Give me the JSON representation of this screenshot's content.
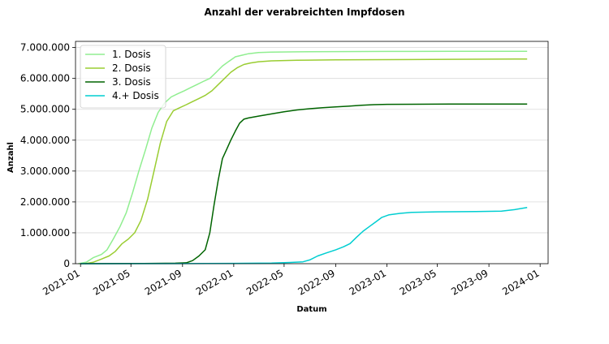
{
  "chart_data": {
    "type": "line",
    "title": "Anzahl der verabreichten Impfdosen",
    "xlabel": "Datum",
    "ylabel": "Anzahl",
    "xlim": [
      "2020-12-20",
      "2024-01-20"
    ],
    "ylim": [
      0,
      7200000
    ],
    "grid": "horizontal",
    "legend_position": "top-left",
    "x_ticks": [
      {
        "date": "2021-01-01",
        "label": "2021-01"
      },
      {
        "date": "2021-05-01",
        "label": "2021-05"
      },
      {
        "date": "2021-09-01",
        "label": "2021-09"
      },
      {
        "date": "2022-01-01",
        "label": "2022-01"
      },
      {
        "date": "2022-05-01",
        "label": "2022-05"
      },
      {
        "date": "2022-09-01",
        "label": "2022-09"
      },
      {
        "date": "2023-01-01",
        "label": "2023-01"
      },
      {
        "date": "2023-05-01",
        "label": "2023-05"
      },
      {
        "date": "2023-09-01",
        "label": "2023-09"
      },
      {
        "date": "2024-01-01",
        "label": "2024-01"
      }
    ],
    "y_ticks": [
      {
        "value": 0,
        "label": "0"
      },
      {
        "value": 1000000,
        "label": "1.000.000"
      },
      {
        "value": 2000000,
        "label": "2.000.000"
      },
      {
        "value": 3000000,
        "label": "3.000.000"
      },
      {
        "value": 4000000,
        "label": "4.000.000"
      },
      {
        "value": 5000000,
        "label": "5.000.000"
      },
      {
        "value": 6000000,
        "label": "6.000.000"
      },
      {
        "value": 7000000,
        "label": "7.000.000"
      }
    ],
    "series": [
      {
        "name": "1. Dosis",
        "color": "#90ee90",
        "x": [
          "2020-12-27",
          "2021-01-15",
          "2021-02-01",
          "2021-02-20",
          "2021-03-05",
          "2021-03-20",
          "2021-04-05",
          "2021-04-20",
          "2021-05-05",
          "2021-05-20",
          "2021-06-05",
          "2021-06-20",
          "2021-07-05",
          "2021-07-20",
          "2021-08-05",
          "2021-08-20",
          "2021-09-05",
          "2021-09-20",
          "2021-10-05",
          "2021-10-20",
          "2021-11-05",
          "2021-11-20",
          "2021-12-05",
          "2021-12-20",
          "2022-01-05",
          "2022-01-20",
          "2022-02-05",
          "2022-03-01",
          "2022-04-01",
          "2022-06-01",
          "2022-09-01",
          "2023-01-01",
          "2023-06-01",
          "2023-12-01"
        ],
        "values": [
          0,
          50000,
          200000,
          300000,
          450000,
          800000,
          1200000,
          1650000,
          2300000,
          3000000,
          3700000,
          4400000,
          4900000,
          5200000,
          5400000,
          5500000,
          5600000,
          5700000,
          5800000,
          5900000,
          6000000,
          6200000,
          6400000,
          6550000,
          6700000,
          6750000,
          6800000,
          6840000,
          6850000,
          6860000,
          6870000,
          6875000,
          6880000,
          6880000
        ]
      },
      {
        "name": "2. Dosis",
        "color": "#9acd32",
        "x": [
          "2021-01-12",
          "2021-02-01",
          "2021-02-20",
          "2021-03-10",
          "2021-03-25",
          "2021-04-10",
          "2021-04-25",
          "2021-05-10",
          "2021-05-25",
          "2021-06-10",
          "2021-06-25",
          "2021-07-10",
          "2021-07-25",
          "2021-08-10",
          "2021-08-25",
          "2021-09-10",
          "2021-09-25",
          "2021-10-10",
          "2021-10-25",
          "2021-11-10",
          "2021-11-25",
          "2021-12-10",
          "2021-12-25",
          "2022-01-10",
          "2022-01-25",
          "2022-02-10",
          "2022-03-01",
          "2022-04-01",
          "2022-06-01",
          "2022-09-01",
          "2023-01-01",
          "2023-06-01",
          "2023-12-01"
        ],
        "values": [
          0,
          50000,
          150000,
          250000,
          400000,
          650000,
          800000,
          1000000,
          1400000,
          2100000,
          3000000,
          3900000,
          4600000,
          4950000,
          5050000,
          5150000,
          5250000,
          5350000,
          5450000,
          5600000,
          5800000,
          6000000,
          6200000,
          6350000,
          6450000,
          6500000,
          6540000,
          6570000,
          6590000,
          6600000,
          6610000,
          6620000,
          6630000
        ]
      },
      {
        "name": "3. Dosis",
        "color": "#006400",
        "x": [
          "2021-01-01",
          "2021-06-01",
          "2021-08-15",
          "2021-09-10",
          "2021-09-25",
          "2021-10-10",
          "2021-10-25",
          "2021-11-05",
          "2021-11-15",
          "2021-11-25",
          "2021-12-05",
          "2021-12-15",
          "2021-12-25",
          "2022-01-05",
          "2022-01-15",
          "2022-01-25",
          "2022-02-05",
          "2022-03-01",
          "2022-04-01",
          "2022-05-01",
          "2022-06-01",
          "2022-07-01",
          "2022-08-01",
          "2022-09-01",
          "2022-10-01",
          "2022-11-01",
          "2022-12-01",
          "2023-01-01",
          "2023-06-01",
          "2023-12-01"
        ],
        "values": [
          0,
          5000,
          15000,
          30000,
          100000,
          250000,
          450000,
          1000000,
          1900000,
          2700000,
          3400000,
          3700000,
          4000000,
          4300000,
          4550000,
          4680000,
          4720000,
          4780000,
          4850000,
          4920000,
          4980000,
          5020000,
          5050000,
          5080000,
          5100000,
          5130000,
          5150000,
          5160000,
          5170000,
          5170000
        ]
      },
      {
        "name": "4.+ Dosis",
        "color": "#00ced1",
        "x": [
          "2021-01-01",
          "2021-09-01",
          "2022-01-01",
          "2022-04-01",
          "2022-05-15",
          "2022-06-15",
          "2022-07-01",
          "2022-07-20",
          "2022-08-10",
          "2022-09-01",
          "2022-09-20",
          "2022-10-05",
          "2022-10-20",
          "2022-11-05",
          "2022-11-20",
          "2022-12-05",
          "2022-12-20",
          "2023-01-05",
          "2023-02-01",
          "2023-03-01",
          "2023-05-01",
          "2023-08-01",
          "2023-10-01",
          "2023-11-01",
          "2023-12-01"
        ],
        "values": [
          0,
          2000,
          10000,
          20000,
          40000,
          60000,
          120000,
          250000,
          350000,
          450000,
          550000,
          650000,
          850000,
          1050000,
          1200000,
          1350000,
          1500000,
          1580000,
          1630000,
          1660000,
          1680000,
          1690000,
          1700000,
          1750000,
          1820000
        ]
      }
    ]
  }
}
